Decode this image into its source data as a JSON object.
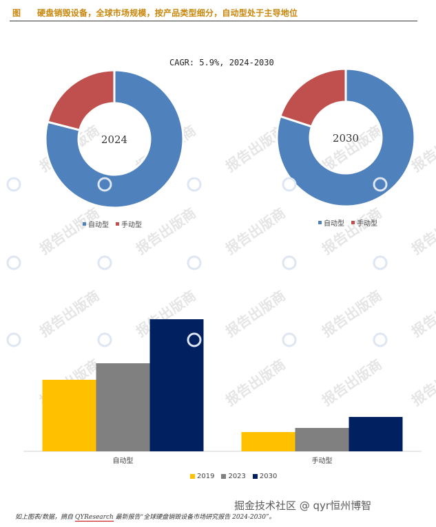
{
  "header": {
    "fig_label": "图",
    "title": "硬盘销毁设备，全球市场规模，按产品类型细分，自动型处于主导地位"
  },
  "cagr_text": "CAGR:    5.9%, 2024-2030",
  "chart_data": [
    {
      "type": "pie",
      "variant": "donut",
      "center_label": "2024",
      "categories": [
        "自动型",
        "手动型"
      ],
      "values": [
        79,
        21
      ],
      "colors": [
        "#4f81bd",
        "#c0504d"
      ],
      "legend": [
        "自动型",
        "手动型"
      ]
    },
    {
      "type": "pie",
      "variant": "donut",
      "center_label": "2030",
      "categories": [
        "自动型",
        "手动型"
      ],
      "values": [
        80,
        20
      ],
      "colors": [
        "#4f81bd",
        "#c0504d"
      ],
      "legend": [
        "自动型",
        "手动型"
      ]
    },
    {
      "type": "bar",
      "categories": [
        "自动型",
        "手动型"
      ],
      "series": [
        {
          "name": "2019",
          "values": [
            52,
            14
          ],
          "color": "#ffc000"
        },
        {
          "name": "2023",
          "values": [
            64,
            17
          ],
          "color": "#808080"
        },
        {
          "name": "2030",
          "values": [
            96,
            25
          ],
          "color": "#002060"
        }
      ],
      "ylim": [
        0,
        100
      ],
      "legend": [
        "2019",
        "2023",
        "2030"
      ]
    }
  ],
  "watermark_text": "报告出版商",
  "source_prefix": "如上图表/数据，摘自 ",
  "source_brand": "QYResearch",
  "source_suffix": " 最新报告“全球硬盘销毁设备市场研究报告 2024-2030”。",
  "brand_watermark": "掘金技术社区 @ qyr恒州博智"
}
